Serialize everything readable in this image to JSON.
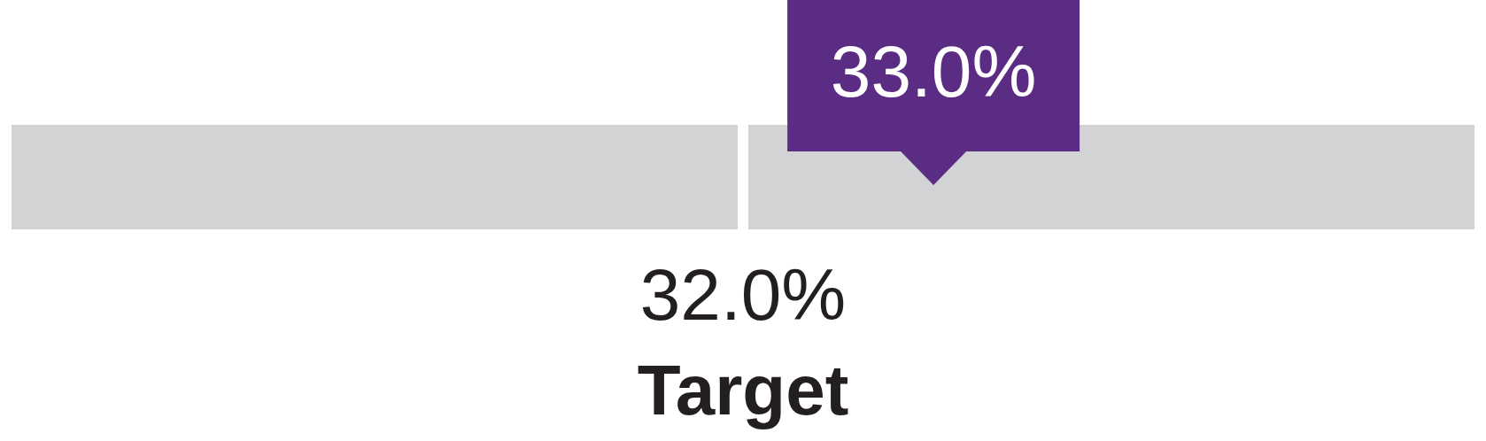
{
  "chart_data": {
    "type": "other",
    "categories": [
      null,
      "Target"
    ],
    "values": [
      33.0,
      32.0
    ],
    "value_labels": [
      "33.0%",
      "32.0%"
    ],
    "colors": [
      "#5b2c83",
      "#d1d3d4"
    ]
  }
}
